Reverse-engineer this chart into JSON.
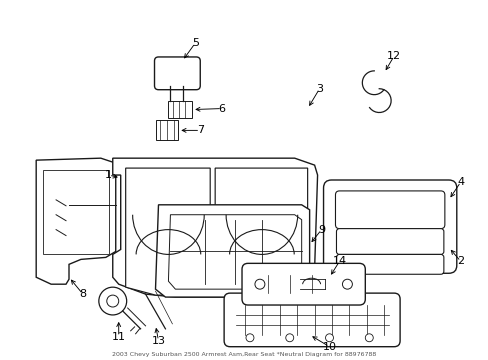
{
  "title": "2003 Chevy Suburban 2500 Armrest Asm,Rear Seat *Neutral Diagram for 88976788",
  "background_color": "#ffffff",
  "fig_width": 4.89,
  "fig_height": 3.6,
  "dpi": 100,
  "line_color": "#1a1a1a",
  "label_fontsize": 8.0
}
